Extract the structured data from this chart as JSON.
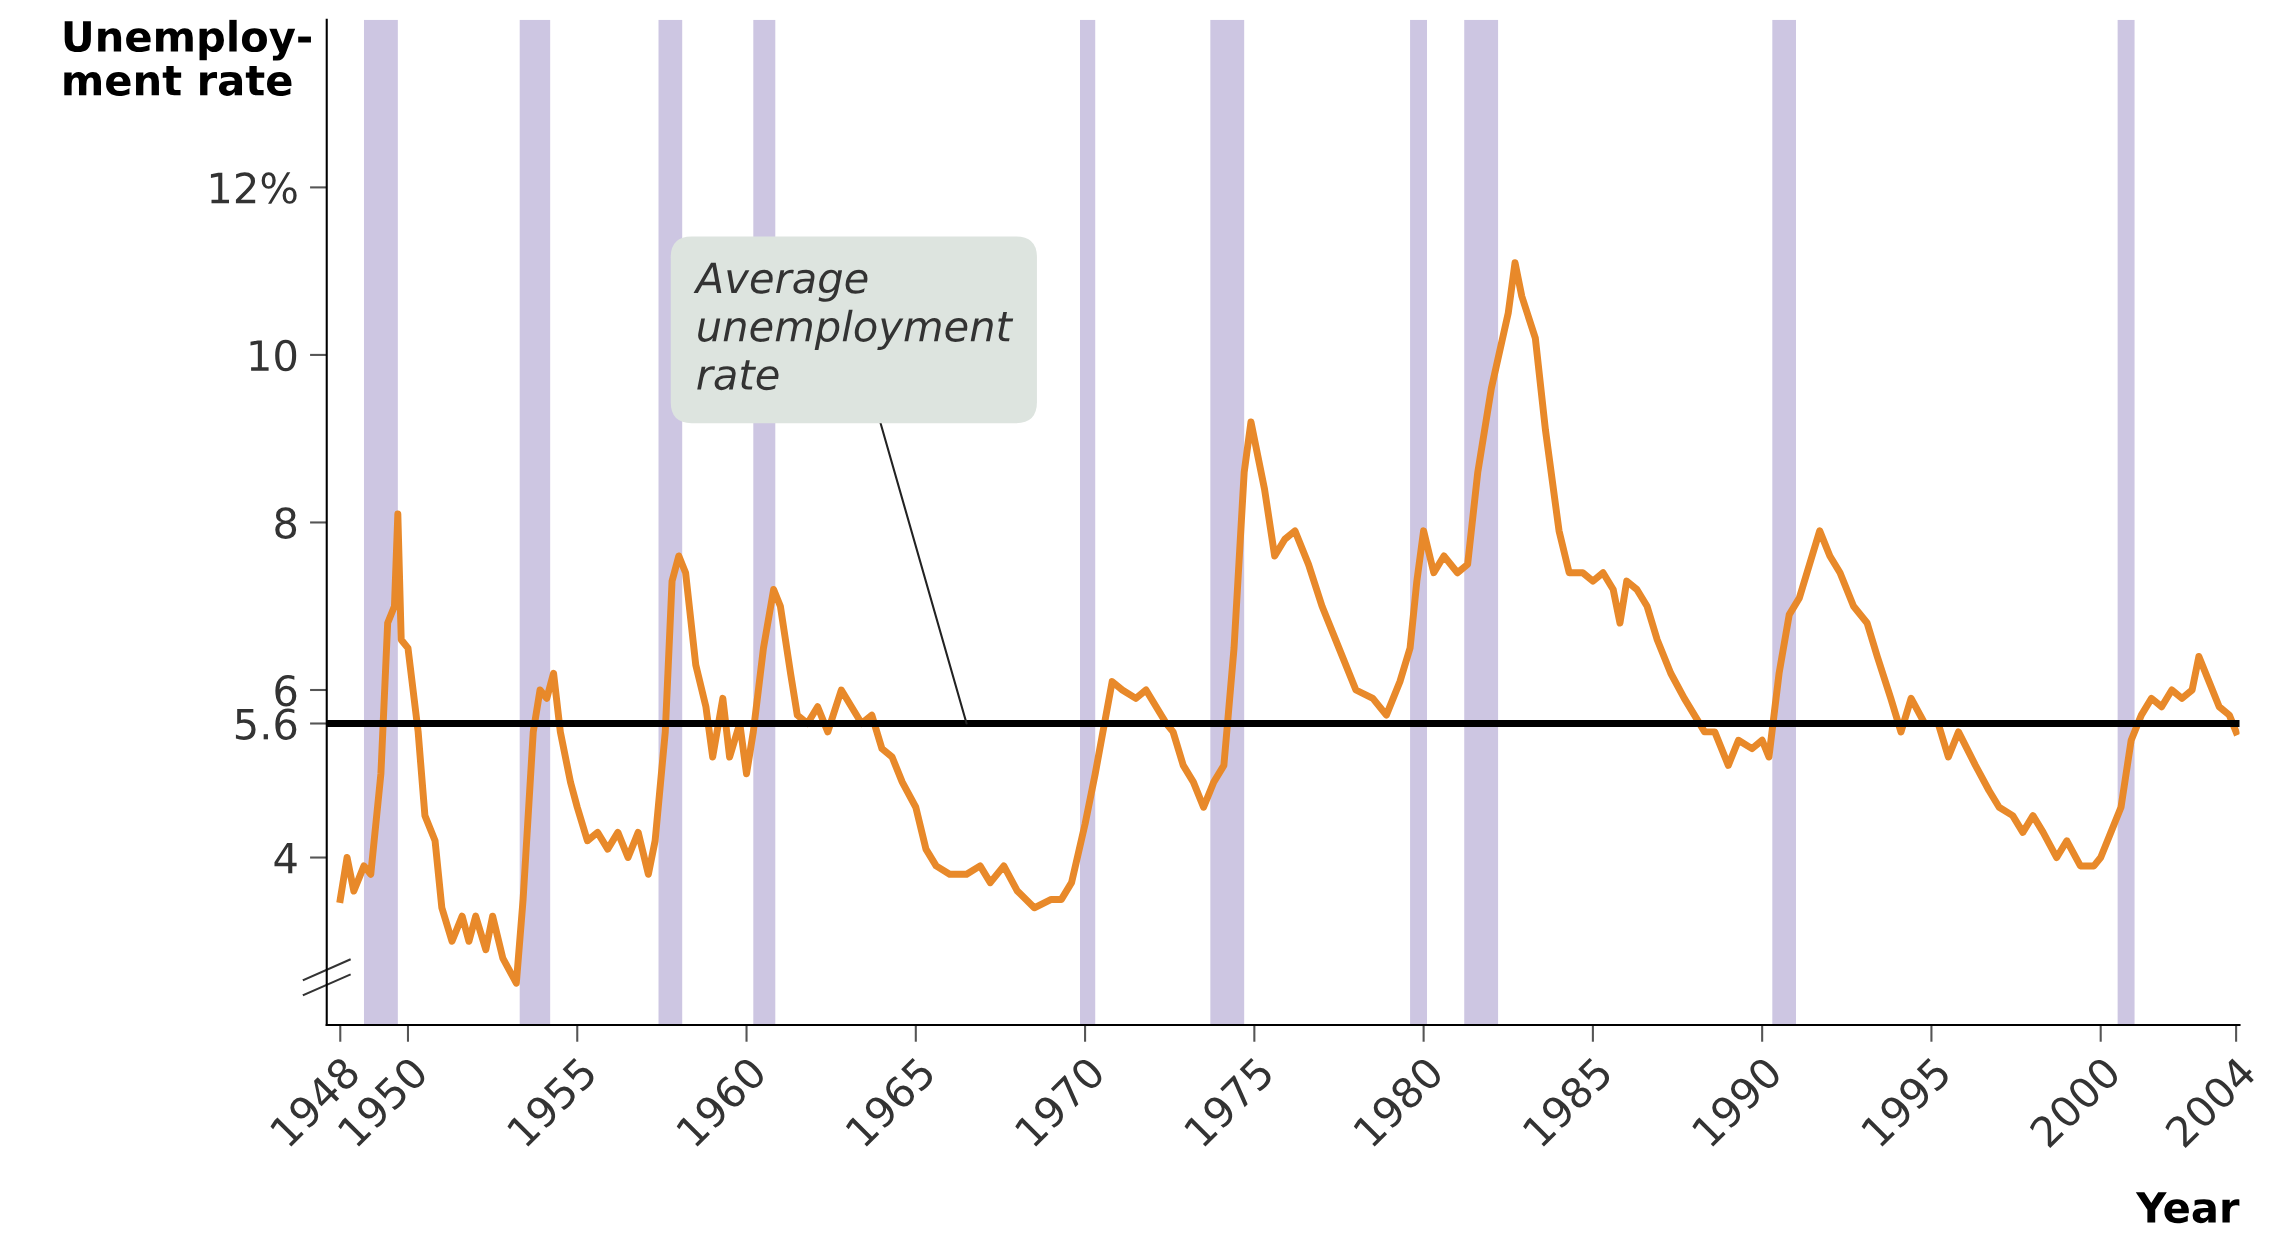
{
  "chart_data": {
    "type": "line",
    "xlabel": "Year",
    "ylabel": "Unemploy-\nment rate",
    "annotations": [
      {
        "text": "Average\nunemployment\nrate",
        "x": 1966.5,
        "y": 5.6
      }
    ],
    "ref_lines": [
      {
        "axis": "y",
        "value": 5.6,
        "color": "#000000"
      }
    ],
    "bands": [
      {
        "axis": "x",
        "from": 1948.7,
        "to": 1949.7,
        "color": "#cdc6e2"
      },
      {
        "axis": "x",
        "from": 1953.3,
        "to": 1954.2,
        "color": "#cdc6e2"
      },
      {
        "axis": "x",
        "from": 1957.4,
        "to": 1958.1,
        "color": "#cdc6e2"
      },
      {
        "axis": "x",
        "from": 1960.2,
        "to": 1960.85,
        "color": "#cdc6e2"
      },
      {
        "axis": "x",
        "from": 1969.85,
        "to": 1970.3,
        "color": "#cdc6e2"
      },
      {
        "axis": "x",
        "from": 1973.7,
        "to": 1974.7,
        "color": "#cdc6e2"
      },
      {
        "axis": "x",
        "from": 1979.6,
        "to": 1980.1,
        "color": "#cdc6e2"
      },
      {
        "axis": "x",
        "from": 1981.2,
        "to": 1982.2,
        "color": "#cdc6e2"
      },
      {
        "axis": "x",
        "from": 1990.3,
        "to": 1991.0,
        "color": "#cdc6e2"
      },
      {
        "axis": "x",
        "from": 2000.5,
        "to": 2001.0,
        "color": "#cdc6e2"
      }
    ],
    "series": [
      {
        "color": "#e8892a",
        "x": [
          1948.0,
          1948.2,
          1948.4,
          1948.7,
          1948.9,
          1949.2,
          1949.4,
          1949.6,
          1949.7,
          1949.8,
          1950.0,
          1950.3,
          1950.5,
          1950.8,
          1951.0,
          1951.3,
          1951.6,
          1951.8,
          1952.0,
          1952.3,
          1952.5,
          1952.8,
          1953.2,
          1953.4,
          1953.7,
          1953.9,
          1954.1,
          1954.3,
          1954.5,
          1954.8,
          1955.0,
          1955.3,
          1955.6,
          1955.9,
          1956.2,
          1956.5,
          1956.8,
          1957.1,
          1957.3,
          1957.6,
          1957.8,
          1958.0,
          1958.2,
          1958.5,
          1958.8,
          1959.0,
          1959.3,
          1959.5,
          1959.8,
          1960.0,
          1960.2,
          1960.5,
          1960.8,
          1961.0,
          1961.3,
          1961.5,
          1961.8,
          1962.1,
          1962.4,
          1962.8,
          1963.1,
          1963.4,
          1963.7,
          1964.0,
          1964.3,
          1964.6,
          1965.0,
          1965.3,
          1965.6,
          1966.0,
          1966.5,
          1966.9,
          1967.2,
          1967.6,
          1968.0,
          1968.5,
          1969.0,
          1969.3,
          1969.6,
          1970.0,
          1970.3,
          1970.8,
          1971.1,
          1971.5,
          1971.8,
          1972.1,
          1972.4,
          1972.6,
          1972.9,
          1973.2,
          1973.5,
          1973.8,
          1974.1,
          1974.4,
          1974.7,
          1974.9,
          1975.3,
          1975.6,
          1975.9,
          1976.2,
          1976.6,
          1977.0,
          1977.5,
          1978.0,
          1978.5,
          1978.9,
          1979.3,
          1979.6,
          1979.8,
          1980.0,
          1980.3,
          1980.6,
          1981.0,
          1981.3,
          1981.6,
          1982.0,
          1982.5,
          1982.7,
          1982.9,
          1983.3,
          1983.6,
          1984.0,
          1984.3,
          1984.7,
          1985.0,
          1985.3,
          1985.6,
          1985.8,
          1986.0,
          1986.3,
          1986.6,
          1986.9,
          1987.3,
          1987.7,
          1988.0,
          1988.3,
          1988.6,
          1989.0,
          1989.3,
          1989.7,
          1990.0,
          1990.2,
          1990.5,
          1990.8,
          1991.1,
          1991.4,
          1991.7,
          1992.0,
          1992.3,
          1992.7,
          1993.1,
          1993.4,
          1993.8,
          1994.1,
          1994.4,
          1994.8,
          1995.2,
          1995.5,
          1995.8,
          1996.3,
          1996.7,
          1997.0,
          1997.4,
          1997.7,
          1998.0,
          1998.3,
          1998.7,
          1999.0,
          1999.4,
          1999.8,
          2000.0,
          2000.3,
          2000.6,
          2000.9,
          2001.2,
          2001.5,
          2001.8,
          2002.1,
          2002.4,
          2002.7,
          2002.9,
          2003.2,
          2003.5,
          2003.8,
          2004.0
        ],
        "values": [
          3.5,
          4.0,
          3.6,
          3.9,
          3.8,
          5.0,
          6.8,
          7.0,
          8.1,
          6.6,
          6.5,
          5.5,
          4.5,
          4.2,
          3.4,
          3.0,
          3.3,
          3.0,
          3.3,
          2.9,
          3.3,
          2.8,
          2.5,
          3.5,
          5.5,
          6.0,
          5.9,
          6.2,
          5.5,
          4.9,
          4.6,
          4.2,
          4.3,
          4.1,
          4.3,
          4.0,
          4.3,
          3.8,
          4.2,
          5.5,
          7.3,
          7.6,
          7.4,
          6.3,
          5.8,
          5.2,
          5.9,
          5.2,
          5.6,
          5.0,
          5.5,
          6.5,
          7.2,
          7.0,
          6.2,
          5.7,
          5.6,
          5.8,
          5.5,
          6.0,
          5.8,
          5.6,
          5.7,
          5.3,
          5.2,
          4.9,
          4.6,
          4.1,
          3.9,
          3.8,
          3.8,
          3.9,
          3.7,
          3.9,
          3.6,
          3.4,
          3.5,
          3.5,
          3.7,
          4.4,
          5.0,
          6.1,
          6.0,
          5.9,
          6.0,
          5.8,
          5.6,
          5.5,
          5.1,
          4.9,
          4.6,
          4.9,
          5.1,
          6.5,
          8.6,
          9.2,
          8.4,
          7.6,
          7.8,
          7.9,
          7.5,
          7.0,
          6.5,
          6.0,
          5.9,
          5.7,
          6.1,
          6.5,
          7.3,
          7.9,
          7.4,
          7.6,
          7.4,
          7.5,
          8.6,
          9.6,
          10.5,
          11.1,
          10.7,
          10.2,
          9.1,
          7.9,
          7.4,
          7.4,
          7.3,
          7.4,
          7.2,
          6.8,
          7.3,
          7.2,
          7.0,
          6.6,
          6.2,
          5.9,
          5.7,
          5.5,
          5.5,
          5.1,
          5.4,
          5.3,
          5.4,
          5.2,
          6.2,
          6.9,
          7.1,
          7.5,
          7.9,
          7.6,
          7.4,
          7.0,
          6.8,
          6.4,
          5.9,
          5.5,
          5.9,
          5.6,
          5.6,
          5.2,
          5.5,
          5.1,
          4.8,
          4.6,
          4.5,
          4.3,
          4.5,
          4.3,
          4.0,
          4.2,
          3.9,
          3.9,
          4.0,
          4.3,
          4.6,
          5.4,
          5.7,
          5.9,
          5.8,
          6.0,
          5.9,
          6.0,
          6.4,
          6.1,
          5.8,
          5.7,
          5.5
        ]
      }
    ],
    "xlim": [
      1947.6,
      2004.1
    ],
    "ylim": [
      2.0,
      14.0
    ],
    "xticks": [
      1948,
      1950,
      1955,
      1960,
      1965,
      1970,
      1975,
      1980,
      1985,
      1990,
      1995,
      2000,
      2004
    ],
    "yticks": [
      4,
      5.6,
      6,
      8,
      10,
      {
        "value": 12,
        "label": "12%"
      }
    ],
    "grid": false,
    "line_style": "solid",
    "marker": "none"
  }
}
